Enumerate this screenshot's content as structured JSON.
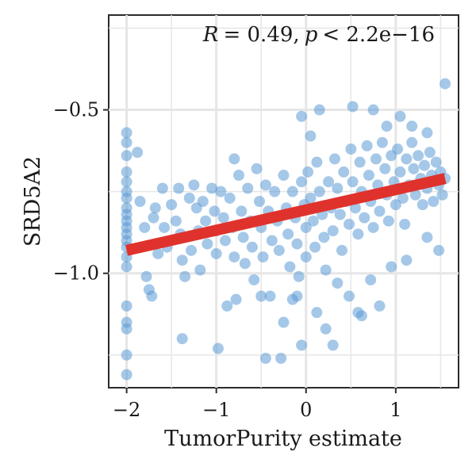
{
  "chart_data": {
    "type": "scatter",
    "xlabel": "TumorPurity estimate",
    "ylabel": "SRD5A2",
    "annotation": {
      "r_label": "R",
      "r_value": "= 0.49,",
      "p_label": "p",
      "p_value": "< 2.2e−16"
    },
    "xlim": [
      -2.2,
      1.7
    ],
    "ylim": [
      -1.35,
      -0.21
    ],
    "x_ticks": [
      -2,
      -1,
      0,
      1
    ],
    "x_tick_labels": [
      "−2",
      "−1",
      "0",
      "1"
    ],
    "y_ticks": [
      -0.5,
      -1.0
    ],
    "y_tick_labels": [
      "−0.5",
      "−1.0"
    ],
    "grid": true,
    "point_color": "#5b9bd5",
    "line_color": "#e0322c",
    "regression": {
      "x": [
        -2.0,
        1.55
      ],
      "y": [
        -0.93,
        -0.71
      ]
    },
    "points": [
      [
        -2,
        -0.57
      ],
      [
        -2,
        -0.6
      ],
      [
        -2,
        -0.64
      ],
      [
        -2,
        -0.69
      ],
      [
        -2,
        -0.72
      ],
      [
        -2,
        -0.75
      ],
      [
        -2,
        -0.77
      ],
      [
        -2,
        -0.8
      ],
      [
        -2,
        -0.82
      ],
      [
        -2,
        -0.84
      ],
      [
        -2,
        -0.86
      ],
      [
        -2,
        -0.88
      ],
      [
        -2,
        -0.9
      ],
      [
        -2,
        -0.92
      ],
      [
        -2,
        -0.95
      ],
      [
        -2,
        -0.98
      ],
      [
        -2,
        -1.1
      ],
      [
        -2,
        -1.15
      ],
      [
        -2,
        -1.17
      ],
      [
        -2,
        -1.25
      ],
      [
        -2,
        -1.31
      ],
      [
        -1.88,
        -0.63
      ],
      [
        -1.85,
        -0.78
      ],
      [
        -1.8,
        -0.86
      ],
      [
        -1.78,
        -1.01
      ],
      [
        -1.75,
        -1.05
      ],
      [
        -1.72,
        -1.07
      ],
      [
        -1.7,
        -0.83
      ],
      [
        -1.68,
        -0.8
      ],
      [
        -1.65,
        -0.94
      ],
      [
        -1.6,
        -0.74
      ],
      [
        -1.58,
        -0.86
      ],
      [
        -1.55,
        -0.92
      ],
      [
        -1.5,
        -0.79
      ],
      [
        -1.45,
        -0.84
      ],
      [
        -1.42,
        -0.74
      ],
      [
        -1.4,
        -0.88
      ],
      [
        -1.38,
        -0.96
      ],
      [
        -1.35,
        -1.01
      ],
      [
        -1.3,
        -0.77
      ],
      [
        -1.28,
        -0.93
      ],
      [
        -1.25,
        -0.73
      ],
      [
        -1.22,
        -0.8
      ],
      [
        -1.2,
        -0.87
      ],
      [
        -1.18,
        -0.99
      ],
      [
        -1.15,
        -0.78
      ],
      [
        -1.12,
        -0.84
      ],
      [
        -1.1,
        -0.91
      ],
      [
        -1.05,
        -0.74
      ],
      [
        -1.02,
        -0.81
      ],
      [
        -1,
        -0.87
      ],
      [
        -1,
        -0.94
      ],
      [
        -0.98,
        -1.23
      ],
      [
        -0.95,
        -0.75
      ],
      [
        -0.92,
        -0.83
      ],
      [
        -0.9,
        -0.9
      ],
      [
        -0.88,
        -1.1
      ],
      [
        -0.85,
        -0.77
      ],
      [
        -0.82,
        -0.86
      ],
      [
        -0.8,
        -0.95
      ],
      [
        -0.78,
        -1.08
      ],
      [
        -0.75,
        -0.7
      ],
      [
        -0.72,
        -0.81
      ],
      [
        -0.7,
        -0.89
      ],
      [
        -0.68,
        -0.97
      ],
      [
        -0.65,
        -0.74
      ],
      [
        -0.62,
        -0.84
      ],
      [
        -0.6,
        -0.92
      ],
      [
        -0.58,
        -1.02
      ],
      [
        -0.55,
        -0.68
      ],
      [
        -0.52,
        -0.78
      ],
      [
        -0.5,
        -0.86
      ],
      [
        -0.48,
        -0.95
      ],
      [
        -0.45,
        -0.73
      ],
      [
        -0.42,
        -0.81
      ],
      [
        -0.4,
        -1.07
      ],
      [
        -0.38,
        -0.9
      ],
      [
        -0.35,
        -0.75
      ],
      [
        -0.32,
        -0.84
      ],
      [
        -0.3,
        -0.93
      ],
      [
        -0.28,
        -1.26
      ],
      [
        -0.25,
        -0.7
      ],
      [
        -0.22,
        -0.8
      ],
      [
        -0.2,
        -0.88
      ],
      [
        -0.18,
        -0.98
      ],
      [
        -0.15,
        -0.75
      ],
      [
        -0.12,
        -0.83
      ],
      [
        -0.1,
        -0.91
      ],
      [
        -0.08,
        -1.01
      ],
      [
        -0.05,
        -0.72
      ],
      [
        -0.02,
        -0.79
      ],
      [
        0,
        -0.86
      ],
      [
        0,
        -0.95
      ],
      [
        0.02,
        -0.69
      ],
      [
        0.05,
        -0.77
      ],
      [
        0.08,
        -0.84
      ],
      [
        0.1,
        -0.92
      ],
      [
        0.12,
        -0.66
      ],
      [
        0.15,
        -0.75
      ],
      [
        0.18,
        -0.82
      ],
      [
        0.2,
        -0.89
      ],
      [
        0.22,
        -0.99
      ],
      [
        0.25,
        -0.72
      ],
      [
        0.28,
        -0.8
      ],
      [
        0.3,
        -0.87
      ],
      [
        0.32,
        -0.65
      ],
      [
        0.35,
        -0.74
      ],
      [
        0.38,
        -0.82
      ],
      [
        0.4,
        -0.93
      ],
      [
        0.42,
        -0.69
      ],
      [
        0.45,
        -0.78
      ],
      [
        0.48,
        -0.85
      ],
      [
        0.5,
        -0.62
      ],
      [
        0.52,
        -0.72
      ],
      [
        0.55,
        -0.8
      ],
      [
        0.58,
        -0.88
      ],
      [
        0.6,
        -0.66
      ],
      [
        0.62,
        -0.75
      ],
      [
        0.65,
        -0.83
      ],
      [
        0.68,
        -0.61
      ],
      [
        0.7,
        -0.7
      ],
      [
        0.72,
        -0.78
      ],
      [
        0.75,
        -0.86
      ],
      [
        0.78,
        -0.65
      ],
      [
        0.8,
        -0.73
      ],
      [
        0.82,
        -0.81
      ],
      [
        0.85,
        -0.6
      ],
      [
        0.88,
        -0.68
      ],
      [
        0.9,
        -0.76
      ],
      [
        0.92,
        -0.84
      ],
      [
        0.95,
        -0.64
      ],
      [
        0.98,
        -0.72
      ],
      [
        1,
        -0.79
      ],
      [
        1.02,
        -0.62
      ],
      [
        1.05,
        -0.69
      ],
      [
        1.08,
        -0.77
      ],
      [
        1.1,
        -0.85
      ],
      [
        1.12,
        -0.65
      ],
      [
        1.15,
        -0.73
      ],
      [
        1.18,
        -0.6
      ],
      [
        1.2,
        -0.68
      ],
      [
        1.22,
        -0.76
      ],
      [
        1.25,
        -0.64
      ],
      [
        1.28,
        -0.71
      ],
      [
        1.3,
        -0.79
      ],
      [
        1.32,
        -0.67
      ],
      [
        1.35,
        -0.74
      ],
      [
        1.38,
        -0.63
      ],
      [
        1.4,
        -0.7
      ],
      [
        1.42,
        -0.78
      ],
      [
        1.45,
        -0.66
      ],
      [
        1.48,
        -0.73
      ],
      [
        1.5,
        -0.69
      ],
      [
        1.52,
        -0.76
      ],
      [
        1.55,
        -0.71
      ],
      [
        -0.5,
        -1.07
      ],
      [
        -0.25,
        -1.15
      ],
      [
        -0.1,
        -1.07
      ],
      [
        0.12,
        -1.12
      ],
      [
        0.22,
        -1.17
      ],
      [
        0.35,
        -1.03
      ],
      [
        0.48,
        -1.07
      ],
      [
        0.62,
        -1.13
      ],
      [
        0.72,
        -1.02
      ],
      [
        0.95,
        -0.98
      ],
      [
        0.3,
        -1.22
      ],
      [
        -0.15,
        -1.08
      ],
      [
        0.82,
        -1.1
      ],
      [
        1.12,
        -0.96
      ],
      [
        1.48,
        -0.93
      ],
      [
        1.35,
        -0.89
      ],
      [
        0.05,
        -0.58
      ],
      [
        -0.05,
        -0.52
      ],
      [
        0.15,
        -0.5
      ],
      [
        0.75,
        -0.5
      ],
      [
        0.9,
        -0.55
      ],
      [
        1.18,
        -0.55
      ],
      [
        1.35,
        -0.57
      ],
      [
        1.55,
        -0.42
      ],
      [
        0.52,
        -0.49
      ],
      [
        -0.45,
        -1.26
      ],
      [
        -0.05,
        -1.22
      ],
      [
        0.58,
        -1.12
      ],
      [
        1.05,
        -0.52
      ],
      [
        -1.38,
        -1.2
      ],
      [
        -0.8,
        -0.65
      ]
    ]
  }
}
